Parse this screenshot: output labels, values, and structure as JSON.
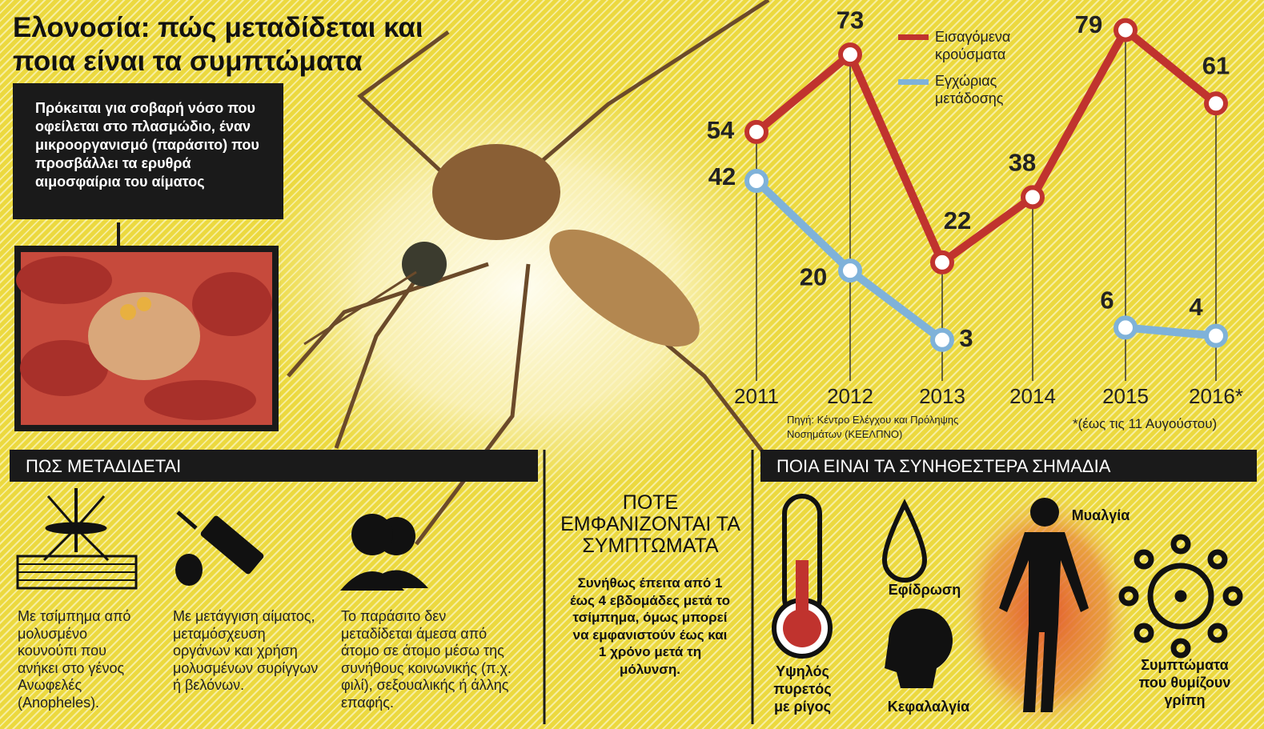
{
  "title": "Ελονοσία: πώς μεταδίδεται και ποια είναι τα συμπτώματα",
  "intro": "Πρόκειται για σοβαρή νόσο που οφείλεται στο πλασμώδιο, έναν μικροοργανισμό (παράσιτο) που προσβάλλει τα ερυθρά αιμοσφαίρια του αίματος",
  "chart_data": {
    "type": "line",
    "categories": [
      "2011",
      "2012",
      "2013",
      "2014",
      "2015",
      "2016*"
    ],
    "series": [
      {
        "name": "Εισαγόμενα κρούσματα",
        "color": "#c0332e",
        "values": [
          54,
          73,
          22,
          38,
          79,
          61
        ]
      },
      {
        "name": "Εγχώριας μετάδοσης",
        "color": "#7fb2d9",
        "values": [
          42,
          20,
          3,
          null,
          6,
          4
        ]
      }
    ],
    "ylim": [
      0,
      85
    ],
    "source": "Πηγή: Κέντρο Ελέγχου και Πρόληψης Νοσημάτων (ΚΕΕΛΠΝΟ)",
    "footnote": "*(έως τις 11 Αυγούστου)"
  },
  "transmission": {
    "heading": "ΠΩΣ ΜΕΤΑΔΙΔΕΤΑΙ",
    "items": [
      "Με τσίμπημα από μολυσμένο κουνούπι που ανήκει στο γένος Ανωφελές (Anopheles).",
      "Με μετάγγιση αίματος, μεταμόσχευση οργάνων και χρήση μολυσμένων συρίγγων ή βελόνων.",
      "Το παράσιτο δεν μεταδίδεται άμεσα από άτομο σε άτομο μέσω της συνήθους κοινωνικής (π.χ. φιλί), σεξουαλικής ή άλλης επαφής."
    ]
  },
  "onset": {
    "heading": "ΠΟΤΕ ΕΜΦΑΝΙΖΟΝΤΑΙ ΤΑ ΣΥΜΠΤΩΜΑΤΑ",
    "text": "Συνήθως έπειτα από 1 έως 4 εβδομάδες μετά το τσίμπημα, όμως μπορεί να εμφανιστούν έως και 1 χρόνο μετά τη μόλυνση."
  },
  "symptoms": {
    "heading": "ΠΟΙΑ ΕΙΝΑΙ ΤΑ ΣΥΝΗΘΕΣΤΕΡΑ ΣΗΜΑΔΙΑ",
    "items": [
      "Υψηλός πυρετός με ρίγος",
      "Εφίδρωση",
      "Κεφαλαλγία",
      "Μυαλγία",
      "Συμπτώματα που θυμίζουν γρίπη"
    ]
  }
}
